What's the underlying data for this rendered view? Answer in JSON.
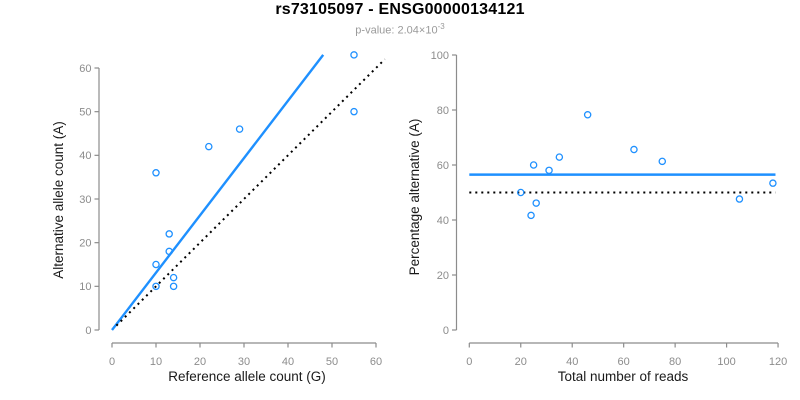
{
  "header": {
    "title": "rs73105097 - ENSG00000134121",
    "subtitle_prefix": "p-value: 2.04×10",
    "subtitle_exponent": "-3"
  },
  "colors": {
    "accent_blue": "#1E90FF",
    "line_black": "#000000",
    "axis_gray": "#8c8c8c",
    "tick_text_gray": "#8c8c8c",
    "label_text": "#1a1a1a",
    "subtitle_gray": "#9a9a9a",
    "background": "#ffffff"
  },
  "chart_data": [
    {
      "type": "scatter",
      "name": "allele-count-scatter",
      "xlabel": "Reference allele count (G)",
      "ylabel": "Alternative allele count (A)",
      "xlim": [
        0,
        62
      ],
      "ylim": [
        0,
        63
      ],
      "xticks": [
        0,
        10,
        20,
        30,
        40,
        50,
        60
      ],
      "yticks": [
        0,
        10,
        20,
        30,
        40,
        50,
        60
      ],
      "grid": false,
      "legend": null,
      "points": [
        [
          10,
          36
        ],
        [
          10,
          15
        ],
        [
          10,
          10
        ],
        [
          13,
          22
        ],
        [
          13,
          18
        ],
        [
          14,
          12
        ],
        [
          14,
          10
        ],
        [
          22,
          42
        ],
        [
          29,
          46
        ],
        [
          55,
          50
        ],
        [
          55,
          63
        ]
      ],
      "lines": [
        {
          "name": "fit-line",
          "style": "solid",
          "color_key": "accent_blue",
          "from": [
            0,
            0
          ],
          "to": [
            48,
            63
          ]
        },
        {
          "name": "identity-line",
          "style": "dotted",
          "color_key": "line_black",
          "from": [
            1,
            1
          ],
          "to": [
            62,
            62
          ]
        }
      ]
    },
    {
      "type": "scatter",
      "name": "percentage-vs-reads-scatter",
      "xlabel": "Total number of reads",
      "ylabel": "Percentage alternative (A)",
      "xlim": [
        0,
        119
      ],
      "ylim": [
        0,
        100
      ],
      "xticks": [
        0,
        20,
        40,
        60,
        80,
        100,
        120
      ],
      "yticks": [
        0,
        20,
        40,
        60,
        80,
        100
      ],
      "grid": false,
      "legend": null,
      "points": [
        [
          20,
          50
        ],
        [
          24,
          41.67
        ],
        [
          25,
          60
        ],
        [
          26,
          46.15
        ],
        [
          31,
          58.06
        ],
        [
          35,
          62.86
        ],
        [
          46,
          78.26
        ],
        [
          64,
          65.63
        ],
        [
          75,
          61.33
        ],
        [
          105,
          47.62
        ],
        [
          118,
          53.39
        ]
      ],
      "lines": [
        {
          "name": "mean-percentage-line",
          "style": "solid",
          "color_key": "accent_blue",
          "from": [
            0,
            56.5
          ],
          "to": [
            119,
            56.5
          ]
        },
        {
          "name": "null-50pct-line",
          "style": "dotted",
          "color_key": "line_black",
          "from": [
            0,
            50
          ],
          "to": [
            119,
            50
          ]
        }
      ]
    }
  ]
}
